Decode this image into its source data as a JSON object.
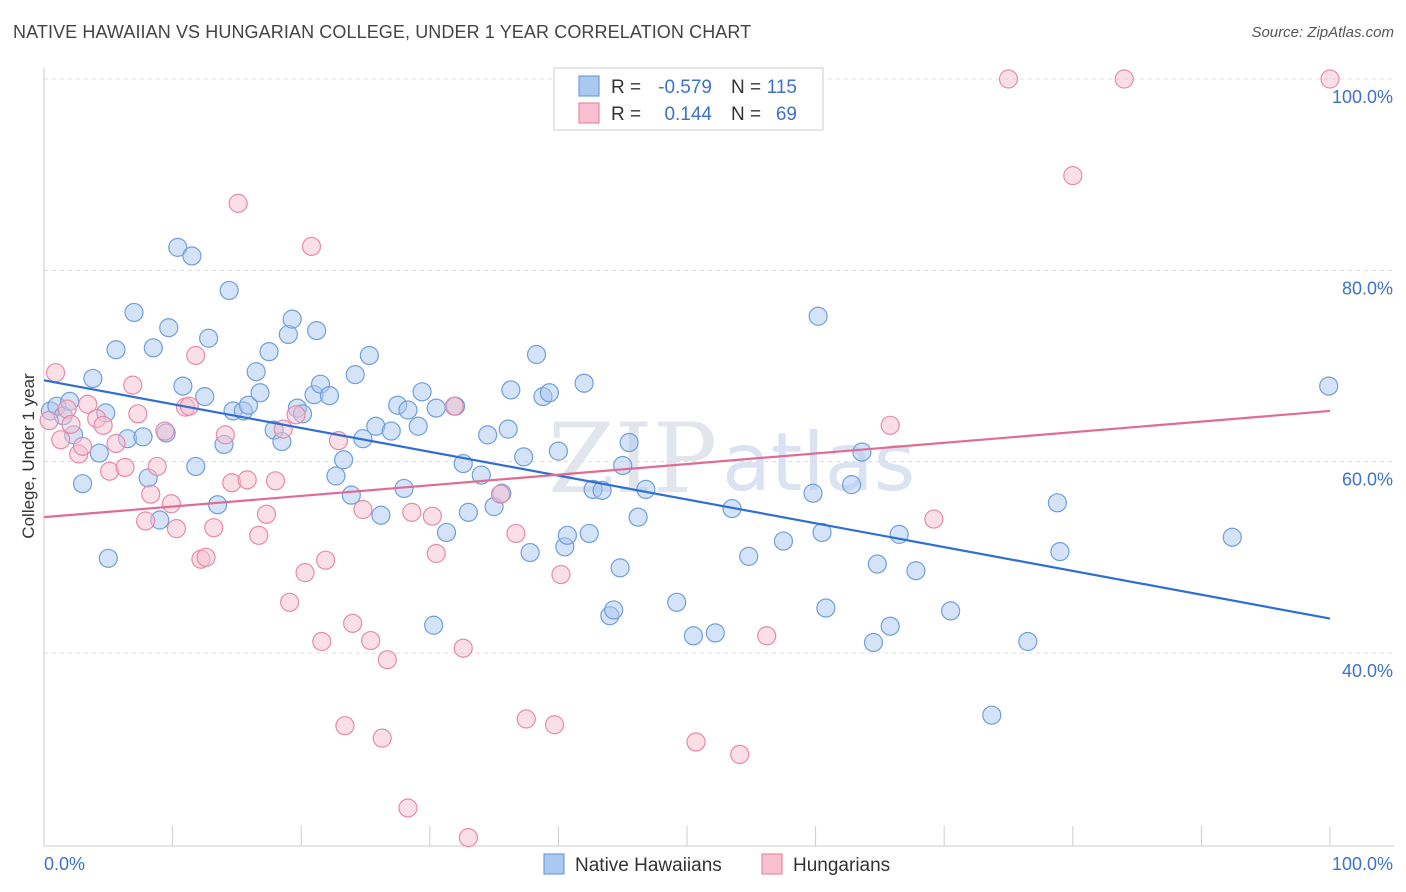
{
  "title": "NATIVE HAWAIIAN VS HUNGARIAN COLLEGE, UNDER 1 YEAR CORRELATION CHART",
  "source": "Source: ZipAtlas.com",
  "watermark": {
    "zip": "ZIP",
    "atlas": "atlas"
  },
  "legend": {
    "r_label": "R =",
    "n_label": "N =",
    "rows": [
      {
        "r": "-0.579",
        "n": "115"
      },
      {
        "r": "0.144",
        "n": "69"
      }
    ]
  },
  "bottom_legend": [
    "Native Hawaiians",
    "Hungarians"
  ],
  "colors": {
    "blue_fill": "#aac8f0",
    "blue_stroke": "#6f9fdc",
    "blue_line": "#2e6fd1",
    "pink_fill": "#f7bfd0",
    "pink_stroke": "#e88aa8",
    "pink_line": "#e06c94",
    "grid": "#dcdcdc",
    "axis_text": "#3d72c8"
  },
  "chart_data": {
    "type": "scatter",
    "title": "NATIVE HAWAIIAN VS HUNGARIAN COLLEGE, UNDER 1 YEAR CORRELATION CHART",
    "xlabel": "",
    "ylabel": "College, Under 1 year",
    "xlim": [
      0,
      100
    ],
    "ylim": [
      20,
      102
    ],
    "x_tick_labels": [
      "0.0%",
      "100.0%"
    ],
    "y_ticks": [
      40,
      60,
      80,
      100
    ],
    "y_tick_labels": [
      "40.0%",
      "60.0%",
      "80.0%",
      "100.0%"
    ],
    "grid": true,
    "legend_position": "top-center",
    "series": [
      {
        "name": "Native Hawaiians",
        "r": -0.579,
        "n": 115,
        "trend": {
          "x": [
            0,
            100
          ],
          "y": [
            68.5,
            43.6
          ]
        },
        "points": [
          [
            0.5,
            65.3
          ],
          [
            1.0,
            65.8
          ],
          [
            1.5,
            64.8
          ],
          [
            2.0,
            66.3
          ],
          [
            2.3,
            62.8
          ],
          [
            3.0,
            57.7
          ],
          [
            3.8,
            68.7
          ],
          [
            4.3,
            60.9
          ],
          [
            4.8,
            65.1
          ],
          [
            5.0,
            49.9
          ],
          [
            5.6,
            71.7
          ],
          [
            6.5,
            62.4
          ],
          [
            7.0,
            75.6
          ],
          [
            7.7,
            62.6
          ],
          [
            8.1,
            58.3
          ],
          [
            8.5,
            71.9
          ],
          [
            9.0,
            53.9
          ],
          [
            9.5,
            63.0
          ],
          [
            9.7,
            74.0
          ],
          [
            10.4,
            82.4
          ],
          [
            10.8,
            67.9
          ],
          [
            11.5,
            81.5
          ],
          [
            11.8,
            59.5
          ],
          [
            12.5,
            66.8
          ],
          [
            12.8,
            72.9
          ],
          [
            13.5,
            55.5
          ],
          [
            14.0,
            61.8
          ],
          [
            14.4,
            77.9
          ],
          [
            14.7,
            65.3
          ],
          [
            15.5,
            65.3
          ],
          [
            15.9,
            65.9
          ],
          [
            16.5,
            69.4
          ],
          [
            16.8,
            67.2
          ],
          [
            17.5,
            71.5
          ],
          [
            17.9,
            63.3
          ],
          [
            18.5,
            62.1
          ],
          [
            19.0,
            73.3
          ],
          [
            19.3,
            74.9
          ],
          [
            19.7,
            65.6
          ],
          [
            20.1,
            65.0
          ],
          [
            21.0,
            67.0
          ],
          [
            21.2,
            73.7
          ],
          [
            21.5,
            68.1
          ],
          [
            22.2,
            66.9
          ],
          [
            22.7,
            58.5
          ],
          [
            23.3,
            60.2
          ],
          [
            23.9,
            56.5
          ],
          [
            24.2,
            69.1
          ],
          [
            24.8,
            62.4
          ],
          [
            25.3,
            71.1
          ],
          [
            25.8,
            63.7
          ],
          [
            26.2,
            54.4
          ],
          [
            27.0,
            63.2
          ],
          [
            27.5,
            65.9
          ],
          [
            28.0,
            57.2
          ],
          [
            28.3,
            65.4
          ],
          [
            29.1,
            63.7
          ],
          [
            29.4,
            67.3
          ],
          [
            30.3,
            42.9
          ],
          [
            30.5,
            65.6
          ],
          [
            31.3,
            52.6
          ],
          [
            32.0,
            65.8
          ],
          [
            32.6,
            59.8
          ],
          [
            33.0,
            54.7
          ],
          [
            34.0,
            58.6
          ],
          [
            34.5,
            62.8
          ],
          [
            35.0,
            55.3
          ],
          [
            35.6,
            56.7
          ],
          [
            36.3,
            67.5
          ],
          [
            36.1,
            63.4
          ],
          [
            37.3,
            60.5
          ],
          [
            37.8,
            50.5
          ],
          [
            38.3,
            71.2
          ],
          [
            38.8,
            66.8
          ],
          [
            39.3,
            67.2
          ],
          [
            40.0,
            61.1
          ],
          [
            40.5,
            51.1
          ],
          [
            40.7,
            52.3
          ],
          [
            42.0,
            68.2
          ],
          [
            42.4,
            52.5
          ],
          [
            42.7,
            57.1
          ],
          [
            43.4,
            57.0
          ],
          [
            44.0,
            43.9
          ],
          [
            44.3,
            44.5
          ],
          [
            44.8,
            48.9
          ],
          [
            45.0,
            59.6
          ],
          [
            45.5,
            62.0
          ],
          [
            46.2,
            54.2
          ],
          [
            46.8,
            57.1
          ],
          [
            49.2,
            45.3
          ],
          [
            50.5,
            41.8
          ],
          [
            52.2,
            42.1
          ],
          [
            53.5,
            55.1
          ],
          [
            54.8,
            50.1
          ],
          [
            57.5,
            51.7
          ],
          [
            59.8,
            56.7
          ],
          [
            60.2,
            75.2
          ],
          [
            60.5,
            52.6
          ],
          [
            60.8,
            44.7
          ],
          [
            62.8,
            57.6
          ],
          [
            63.6,
            61.0
          ],
          [
            64.5,
            41.1
          ],
          [
            64.8,
            49.3
          ],
          [
            65.8,
            42.8
          ],
          [
            66.5,
            52.4
          ],
          [
            67.8,
            48.6
          ],
          [
            70.5,
            44.4
          ],
          [
            73.7,
            33.5
          ],
          [
            76.5,
            41.2
          ],
          [
            78.8,
            55.7
          ],
          [
            79.0,
            50.6
          ],
          [
            92.4,
            52.1
          ],
          [
            99.9,
            67.9
          ]
        ]
      },
      {
        "name": "Hungarians",
        "r": 0.144,
        "n": 69,
        "trend": {
          "x": [
            0,
            100
          ],
          "y": [
            54.2,
            65.3
          ]
        },
        "points": [
          [
            0.4,
            64.3
          ],
          [
            0.9,
            69.3
          ],
          [
            1.3,
            62.3
          ],
          [
            1.8,
            65.5
          ],
          [
            2.1,
            63.9
          ],
          [
            2.7,
            60.8
          ],
          [
            3.0,
            61.6
          ],
          [
            3.4,
            66.0
          ],
          [
            4.1,
            64.5
          ],
          [
            4.6,
            63.8
          ],
          [
            5.1,
            59.0
          ],
          [
            5.6,
            61.9
          ],
          [
            6.3,
            59.4
          ],
          [
            6.9,
            68.0
          ],
          [
            7.3,
            65.0
          ],
          [
            7.9,
            53.8
          ],
          [
            8.3,
            56.6
          ],
          [
            8.8,
            59.5
          ],
          [
            9.4,
            63.2
          ],
          [
            9.9,
            55.6
          ],
          [
            10.3,
            53.0
          ],
          [
            11.0,
            65.7
          ],
          [
            11.3,
            65.8
          ],
          [
            11.8,
            71.1
          ],
          [
            12.2,
            49.8
          ],
          [
            12.6,
            50.0
          ],
          [
            13.2,
            53.1
          ],
          [
            14.1,
            62.8
          ],
          [
            14.6,
            57.8
          ],
          [
            15.1,
            87.0
          ],
          [
            15.8,
            58.1
          ],
          [
            16.7,
            52.3
          ],
          [
            17.3,
            54.5
          ],
          [
            18.0,
            58.0
          ],
          [
            18.6,
            63.4
          ],
          [
            19.1,
            45.3
          ],
          [
            19.6,
            64.9
          ],
          [
            20.3,
            48.4
          ],
          [
            20.8,
            82.5
          ],
          [
            21.6,
            41.2
          ],
          [
            21.9,
            49.7
          ],
          [
            22.9,
            62.2
          ],
          [
            23.4,
            32.4
          ],
          [
            24.0,
            43.1
          ],
          [
            24.8,
            55.0
          ],
          [
            25.4,
            41.3
          ],
          [
            26.3,
            31.1
          ],
          [
            26.7,
            39.3
          ],
          [
            28.3,
            23.8
          ],
          [
            28.6,
            54.7
          ],
          [
            30.2,
            54.3
          ],
          [
            30.5,
            50.4
          ],
          [
            31.9,
            65.8
          ],
          [
            32.6,
            40.5
          ],
          [
            33.0,
            20.7
          ],
          [
            35.5,
            56.6
          ],
          [
            36.7,
            52.5
          ],
          [
            37.5,
            33.1
          ],
          [
            39.7,
            32.5
          ],
          [
            40.2,
            48.2
          ],
          [
            50.7,
            30.7
          ],
          [
            54.1,
            29.4
          ],
          [
            56.2,
            41.8
          ],
          [
            65.8,
            63.8
          ],
          [
            69.2,
            54.0
          ],
          [
            75.0,
            100.0
          ],
          [
            80.0,
            89.9
          ],
          [
            84.0,
            100.0
          ],
          [
            100.0,
            100.0
          ]
        ]
      }
    ]
  }
}
